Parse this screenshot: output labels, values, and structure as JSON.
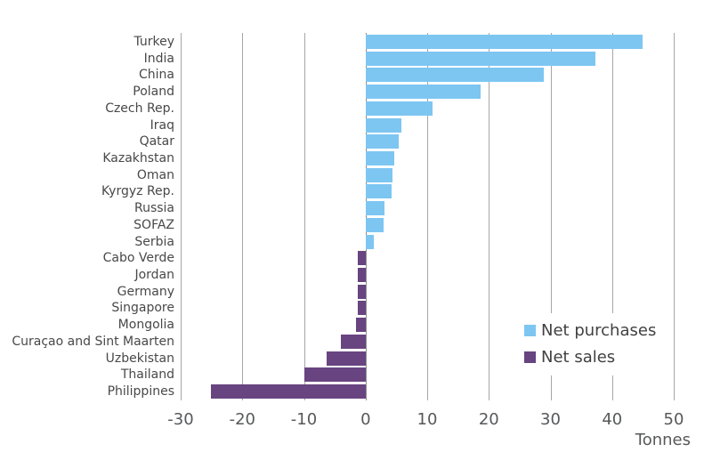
{
  "chart_data": {
    "type": "bar",
    "orientation": "horizontal",
    "unit_label": "Tonnes",
    "xlim": [
      -30,
      50
    ],
    "x_ticks": [
      -30,
      -20,
      -10,
      0,
      10,
      20,
      30,
      40,
      50
    ],
    "grid": true,
    "legend_position": "right-middle",
    "categories": [
      "Turkey",
      "India",
      "China",
      "Poland",
      "Czech Rep.",
      "Iraq",
      "Qatar",
      "Kazakhstan",
      "Oman",
      "Kyrgyz Rep.",
      "Russia",
      "SOFAZ",
      "Serbia",
      "Cabo Verde",
      "Jordan",
      "Germany",
      "Singapore",
      "Mongolia",
      "Curaçao and Sint Maarten",
      "Uzbekistan",
      "Thailand",
      "Philippines"
    ],
    "values": [
      45.0,
      37.3,
      28.9,
      18.7,
      10.8,
      5.8,
      5.4,
      4.6,
      4.4,
      4.2,
      3.1,
      2.9,
      1.3,
      -1.2,
      -1.3,
      -1.3,
      -1.3,
      -1.5,
      -4.0,
      -6.3,
      -9.9,
      -25.1
    ],
    "positive_series_name": "Net purchases",
    "negative_series_name": "Net sales",
    "colors": {
      "net_purchases": "#7dc6f2",
      "net_sales": "#684480",
      "gridline": "#a6a6a6",
      "zero_line": "#909090",
      "category_text": "#48484a",
      "tick_text": "#57585a",
      "legend_text": "#414042"
    }
  },
  "legend": {
    "items": [
      {
        "label": "Net purchases",
        "color": "#7dc6f2"
      },
      {
        "label": "Net sales",
        "color": "#684480"
      }
    ]
  }
}
